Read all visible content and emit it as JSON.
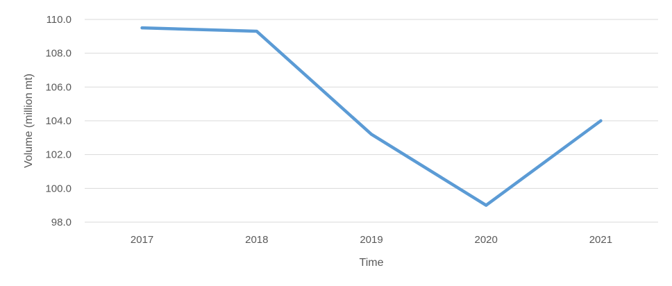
{
  "chart_data": {
    "type": "line",
    "title": "",
    "xlabel": "Time",
    "ylabel": "Volume (million mt)",
    "categories": [
      "2017",
      "2018",
      "2019",
      "2020",
      "2021"
    ],
    "series": [
      {
        "values": [
          109.5,
          109.3,
          103.2,
          99.0,
          104.0
        ],
        "color": "#5b9bd5"
      }
    ],
    "ylim": [
      98.0,
      110.0
    ],
    "yticks": [
      98.0,
      100.0,
      102.0,
      104.0,
      106.0,
      108.0,
      110.0
    ],
    "ytick_labels": [
      "98.0",
      "100.0",
      "102.0",
      "104.0",
      "106.0",
      "108.0",
      "110.0"
    ],
    "grid": true,
    "legend": "none"
  }
}
